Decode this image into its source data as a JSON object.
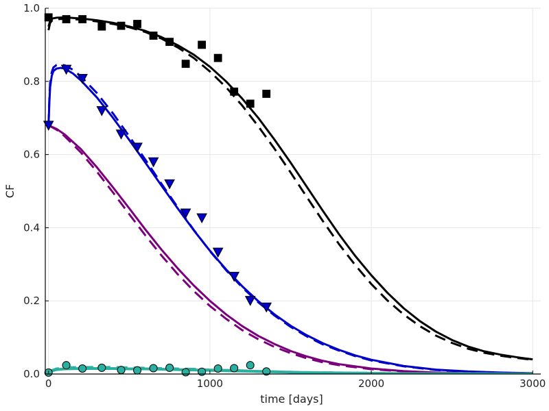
{
  "chart_data": {
    "type": "line",
    "title": "",
    "xlabel": "time [days]",
    "ylabel": "CF",
    "xlim": [
      -20,
      3050
    ],
    "ylim": [
      0,
      1
    ],
    "xticks": [
      0,
      1000,
      2000,
      3000
    ],
    "yticks": [
      0.0,
      0.2,
      0.4,
      0.6,
      0.8,
      1.0
    ],
    "xtick_labels": [
      "0",
      "1000",
      "2000",
      "3000"
    ],
    "ytick_labels": [
      "0.0",
      "0.2",
      "0.4",
      "0.6",
      "0.8",
      "1.0"
    ],
    "grid": true,
    "legend": "none",
    "series": [
      {
        "color": "#000000",
        "kind": "line",
        "dash": "solid",
        "x": [
          0,
          10,
          25,
          50,
          100,
          200,
          300,
          400,
          500,
          600,
          700,
          800,
          900,
          1000,
          1100,
          1200,
          1300,
          1400,
          1500,
          1600,
          1700,
          1800,
          1900,
          2000,
          2100,
          2200,
          2300,
          2400,
          2500,
          2600,
          2700,
          2800,
          2900,
          3000
        ],
        "y": [
          0.95,
          0.965,
          0.972,
          0.974,
          0.975,
          0.972,
          0.967,
          0.96,
          0.95,
          0.938,
          0.921,
          0.899,
          0.873,
          0.84,
          0.8,
          0.753,
          0.7,
          0.641,
          0.578,
          0.512,
          0.446,
          0.382,
          0.323,
          0.27,
          0.222,
          0.18,
          0.145,
          0.116,
          0.093,
          0.075,
          0.062,
          0.053,
          0.046,
          0.04
        ]
      },
      {
        "color": "#000000",
        "kind": "line",
        "dash": "dashed",
        "x": [
          0,
          10,
          25,
          50,
          100,
          200,
          300,
          400,
          500,
          600,
          700,
          800,
          900,
          1000,
          1100,
          1200,
          1300,
          1400,
          1500,
          1600,
          1700,
          1800,
          1900,
          2000,
          2100,
          2200,
          2300,
          2400,
          2500,
          2600,
          2700,
          2800,
          2900,
          3000
        ],
        "y": [
          0.94,
          0.96,
          0.968,
          0.97,
          0.971,
          0.969,
          0.964,
          0.957,
          0.948,
          0.935,
          0.917,
          0.893,
          0.864,
          0.827,
          0.784,
          0.734,
          0.677,
          0.616,
          0.551,
          0.484,
          0.418,
          0.355,
          0.298,
          0.246,
          0.201,
          0.163,
          0.131,
          0.105,
          0.085,
          0.069,
          0.058,
          0.05,
          0.044,
          0.039
        ]
      },
      {
        "color": "#000000",
        "kind": "markers",
        "marker": "square",
        "x": [
          0,
          110,
          210,
          330,
          450,
          550,
          650,
          750,
          850,
          950,
          1050,
          1150,
          1250,
          1350
        ],
        "y": [
          0.975,
          0.97,
          0.97,
          0.95,
          0.952,
          0.957,
          0.925,
          0.908,
          0.848,
          0.9,
          0.864,
          0.772,
          0.739,
          0.766
        ]
      },
      {
        "color": "#0000c8",
        "kind": "line",
        "dash": "solid",
        "x": [
          0,
          5,
          10,
          20,
          30,
          50,
          75,
          100,
          150,
          200,
          300,
          400,
          500,
          600,
          700,
          800,
          900,
          1000,
          1100,
          1200,
          1300,
          1400,
          1500,
          1600,
          1700,
          1800,
          1900,
          2000,
          2200,
          2400,
          2600,
          2800,
          3000
        ],
        "y": [
          0.68,
          0.74,
          0.785,
          0.815,
          0.828,
          0.835,
          0.837,
          0.835,
          0.822,
          0.803,
          0.756,
          0.7,
          0.64,
          0.578,
          0.515,
          0.453,
          0.393,
          0.337,
          0.286,
          0.24,
          0.199,
          0.163,
          0.132,
          0.106,
          0.084,
          0.066,
          0.051,
          0.039,
          0.022,
          0.012,
          0.007,
          0.004,
          0.002
        ]
      },
      {
        "color": "#0000c8",
        "kind": "line",
        "dash": "dashed",
        "x": [
          0,
          5,
          10,
          20,
          30,
          50,
          75,
          100,
          150,
          200,
          300,
          400,
          500,
          600,
          700,
          800,
          900,
          1000,
          1100,
          1200,
          1300,
          1400,
          1500,
          1600,
          1700,
          1800,
          1900,
          2000,
          2200,
          2400,
          2600,
          2800,
          3000
        ],
        "y": [
          0.68,
          0.75,
          0.795,
          0.825,
          0.838,
          0.845,
          0.846,
          0.844,
          0.832,
          0.814,
          0.768,
          0.712,
          0.65,
          0.586,
          0.52,
          0.456,
          0.394,
          0.336,
          0.284,
          0.237,
          0.196,
          0.16,
          0.129,
          0.103,
          0.081,
          0.064,
          0.049,
          0.037,
          0.021,
          0.011,
          0.006,
          0.003,
          0.002
        ]
      },
      {
        "color": "#0000c8",
        "kind": "markers",
        "marker": "triangle-down",
        "x": [
          0,
          110,
          210,
          330,
          450,
          550,
          650,
          750,
          850,
          950,
          1050,
          1150,
          1250,
          1350
        ],
        "y": [
          0.68,
          0.833,
          0.808,
          0.72,
          0.656,
          0.62,
          0.58,
          0.52,
          0.44,
          0.427,
          0.333,
          0.267,
          0.201,
          0.183
        ]
      },
      {
        "color": "#7b007b",
        "kind": "line",
        "dash": "solid",
        "x": [
          0,
          50,
          100,
          200,
          300,
          400,
          500,
          600,
          700,
          800,
          900,
          1000,
          1100,
          1200,
          1300,
          1400,
          1500,
          1600,
          1700,
          1800,
          2000,
          2200,
          2400,
          2600,
          2800,
          3000
        ],
        "y": [
          0.68,
          0.67,
          0.655,
          0.615,
          0.565,
          0.51,
          0.453,
          0.395,
          0.34,
          0.289,
          0.242,
          0.2,
          0.163,
          0.131,
          0.104,
          0.082,
          0.063,
          0.048,
          0.036,
          0.027,
          0.015,
          0.008,
          0.004,
          0.002,
          0.001,
          0.001
        ]
      },
      {
        "color": "#7b007b",
        "kind": "line",
        "dash": "dashed",
        "x": [
          0,
          50,
          100,
          200,
          300,
          400,
          500,
          600,
          700,
          800,
          900,
          1000,
          1100,
          1200,
          1300,
          1400,
          1500,
          1600,
          1700,
          1800,
          2000,
          2200,
          2400,
          2600,
          2800,
          3000
        ],
        "y": [
          0.68,
          0.668,
          0.65,
          0.606,
          0.553,
          0.496,
          0.437,
          0.379,
          0.324,
          0.273,
          0.227,
          0.186,
          0.151,
          0.12,
          0.095,
          0.074,
          0.057,
          0.043,
          0.032,
          0.024,
          0.013,
          0.007,
          0.003,
          0.002,
          0.001,
          0.001
        ]
      },
      {
        "color": "#2ab0a0",
        "kind": "line",
        "dash": "solid",
        "x": [
          0,
          50,
          100,
          200,
          300,
          400,
          500,
          600,
          700,
          800,
          900,
          1000,
          1100,
          1200,
          1300,
          1400,
          1500,
          1600,
          1800,
          2000,
          2200,
          2500,
          3000
        ],
        "y": [
          0.006,
          0.012,
          0.014,
          0.015,
          0.015,
          0.015,
          0.014,
          0.014,
          0.013,
          0.012,
          0.011,
          0.01,
          0.009,
          0.008,
          0.007,
          0.006,
          0.005,
          0.004,
          0.003,
          0.002,
          0.001,
          0.001,
          0.0
        ]
      },
      {
        "color": "#2ab0a0",
        "kind": "line",
        "dash": "dashed",
        "x": [
          0,
          50,
          100,
          200,
          300,
          400,
          500,
          600,
          700,
          800,
          900,
          1000,
          1100,
          1200,
          1300,
          1400,
          1500,
          1600,
          1800,
          2000,
          2200,
          2500,
          3000
        ],
        "y": [
          0.006,
          0.014,
          0.017,
          0.018,
          0.018,
          0.018,
          0.017,
          0.016,
          0.015,
          0.014,
          0.013,
          0.011,
          0.01,
          0.009,
          0.007,
          0.006,
          0.005,
          0.004,
          0.003,
          0.002,
          0.001,
          0.001,
          0.0
        ]
      },
      {
        "color": "#2ab0a0",
        "kind": "markers",
        "marker": "circle",
        "x": [
          0,
          110,
          210,
          330,
          450,
          550,
          650,
          750,
          850,
          950,
          1050,
          1150,
          1250,
          1350
        ],
        "y": [
          0.004,
          0.024,
          0.015,
          0.017,
          0.011,
          0.01,
          0.016,
          0.017,
          0.005,
          0.006,
          0.015,
          0.016,
          0.024,
          0.007
        ]
      }
    ]
  }
}
